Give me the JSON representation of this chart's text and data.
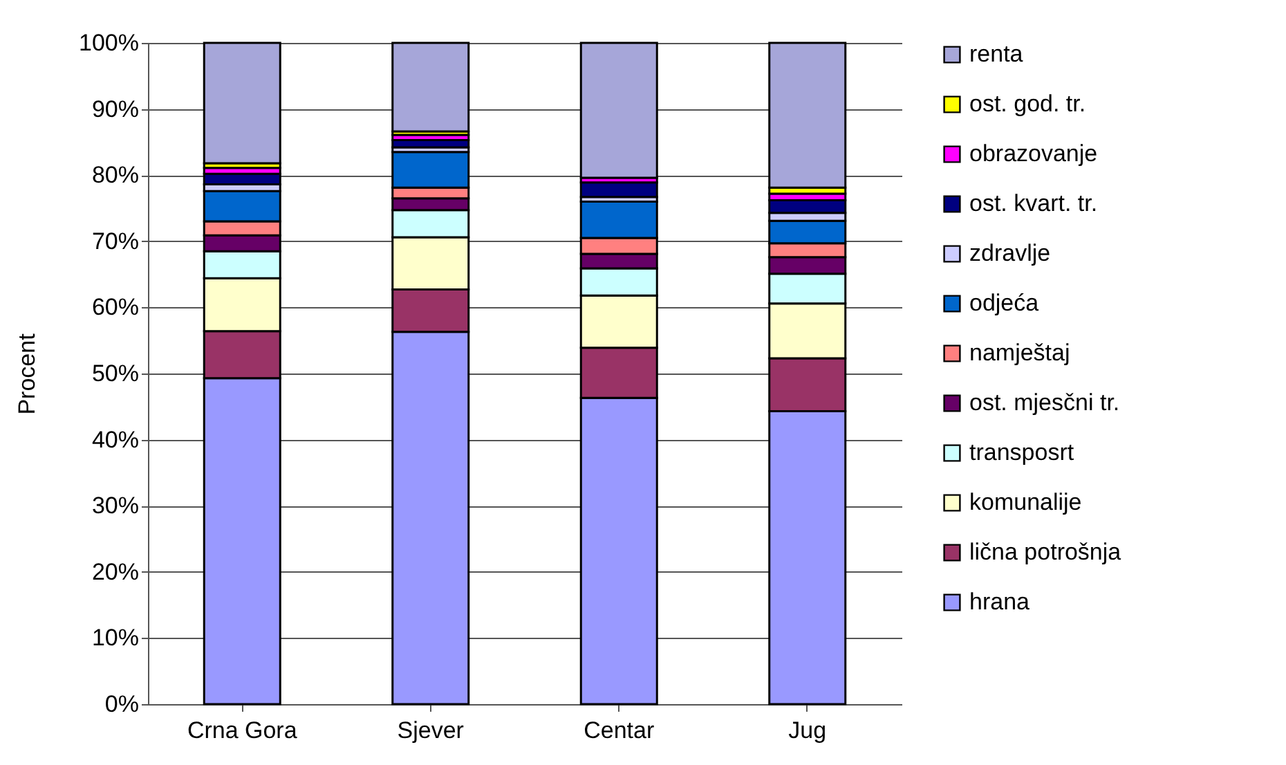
{
  "chart_data": {
    "type": "bar",
    "stacked": true,
    "ylabel": "Procent",
    "categories": [
      "Crna Gora",
      "Sjever",
      "Centar",
      "Jug"
    ],
    "ylim": [
      0,
      100
    ],
    "yticks": [
      {
        "value": 0,
        "label": "0%"
      },
      {
        "value": 10,
        "label": "10%"
      },
      {
        "value": 20,
        "label": "20%"
      },
      {
        "value": 30,
        "label": "30%"
      },
      {
        "value": 40,
        "label": "40%"
      },
      {
        "value": 50,
        "label": "50%"
      },
      {
        "value": 60,
        "label": "60%"
      },
      {
        "value": 70,
        "label": "70%"
      },
      {
        "value": 80,
        "label": "80%"
      },
      {
        "value": 90,
        "label": "90%"
      },
      {
        "value": 100,
        "label": "100%"
      }
    ],
    "grid": "y",
    "legend": "right",
    "series": [
      {
        "name": "hrana",
        "color": "#9999ff",
        "values": [
          49.3,
          56.3,
          46.3,
          44.3
        ]
      },
      {
        "name": "lična potrošnja",
        "color": "#993366",
        "values": [
          7.1,
          6.4,
          7.6,
          8.0
        ]
      },
      {
        "name": "komunalije",
        "color": "#ffffcc",
        "values": [
          8.0,
          7.9,
          7.9,
          8.3
        ]
      },
      {
        "name": "transposrt",
        "color": "#ccffff",
        "values": [
          4.1,
          4.1,
          4.1,
          4.5
        ]
      },
      {
        "name": "ost. mjesčni tr.",
        "color": "#660066",
        "values": [
          2.4,
          1.8,
          2.2,
          2.5
        ]
      },
      {
        "name": "namještaj",
        "color": "#ff8080",
        "values": [
          2.1,
          1.6,
          2.4,
          2.1
        ]
      },
      {
        "name": "odjeća",
        "color": "#0066cc",
        "values": [
          4.6,
          5.4,
          5.5,
          3.4
        ]
      },
      {
        "name": "zdravlje",
        "color": "#ccccff",
        "values": [
          1.0,
          0.7,
          0.7,
          1.2
        ]
      },
      {
        "name": "ost. kvart. tr.",
        "color": "#000080",
        "values": [
          1.6,
          1.1,
          2.2,
          1.9
        ]
      },
      {
        "name": "obrazovanje",
        "color": "#ff00ff",
        "values": [
          0.9,
          0.8,
          0.7,
          1.0
        ]
      },
      {
        "name": "ost. god. tr.",
        "color": "#ffff00",
        "values": [
          0.7,
          0.5,
          null,
          0.9
        ]
      },
      {
        "name": "renta",
        "color": "#a6a6d9",
        "values": [
          18.2,
          13.4,
          20.4,
          21.9
        ]
      }
    ]
  }
}
